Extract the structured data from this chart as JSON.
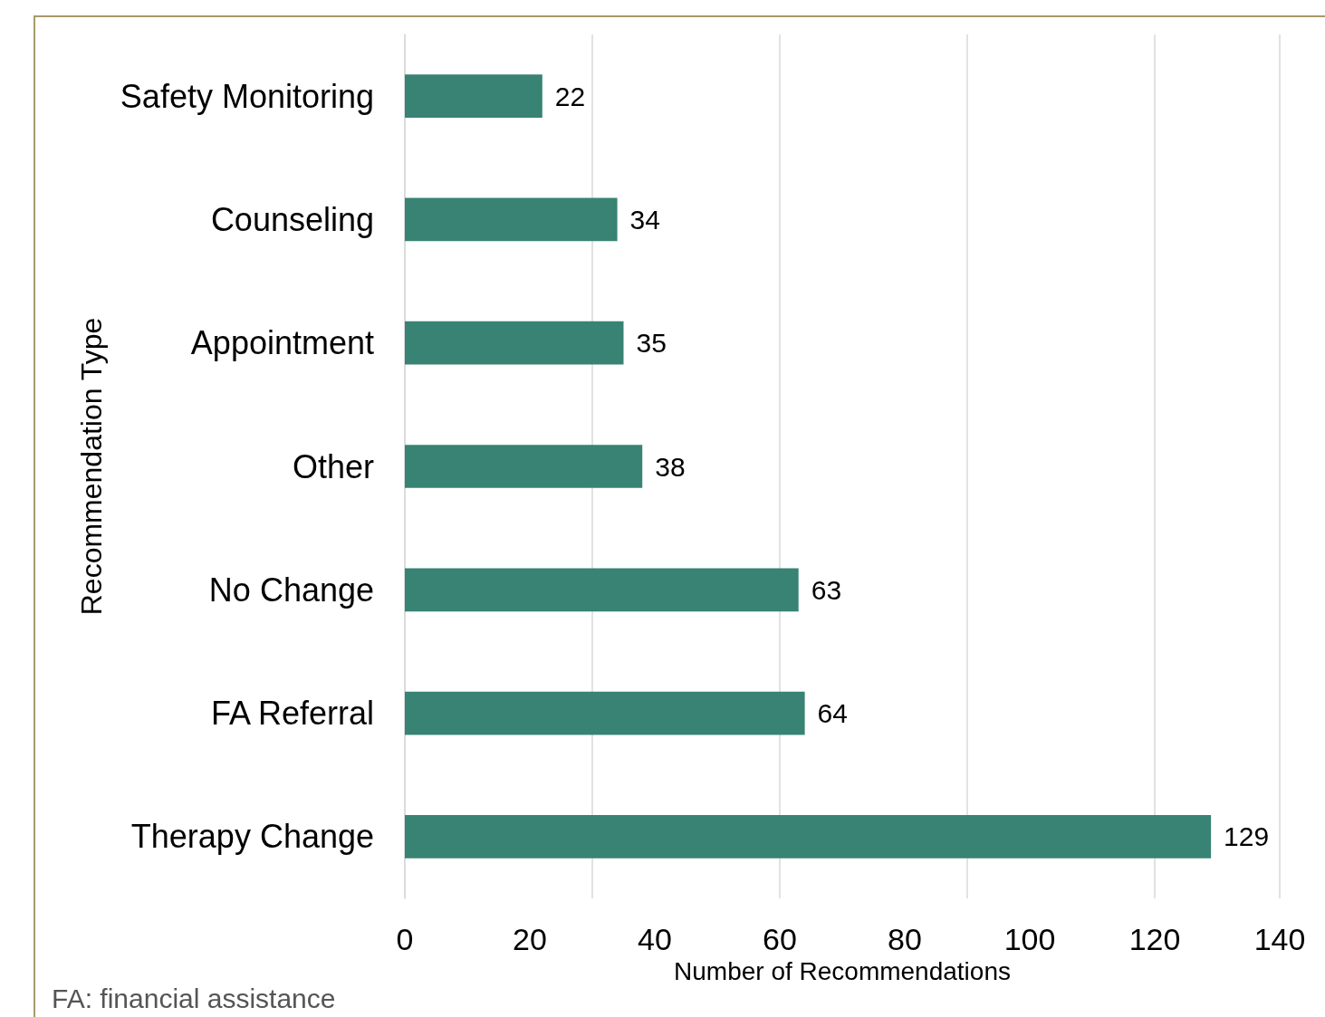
{
  "chart_data": {
    "type": "bar",
    "orientation": "horizontal",
    "categories": [
      "Safety Monitoring",
      "Counseling",
      "Appointment",
      "Other",
      "No Change",
      "FA Referral",
      "Therapy Change"
    ],
    "values": [
      22,
      34,
      35,
      38,
      63,
      64,
      129
    ],
    "color": "#388373",
    "xlim": [
      0,
      140
    ],
    "xticks": [
      0,
      20,
      40,
      60,
      80,
      100,
      120,
      140
    ],
    "xlabel": "Number of Recommendations",
    "ylabel": "Recommendation Type",
    "grid": "x",
    "data_labels": true,
    "annotations": [
      "FA: financial assistance"
    ]
  }
}
